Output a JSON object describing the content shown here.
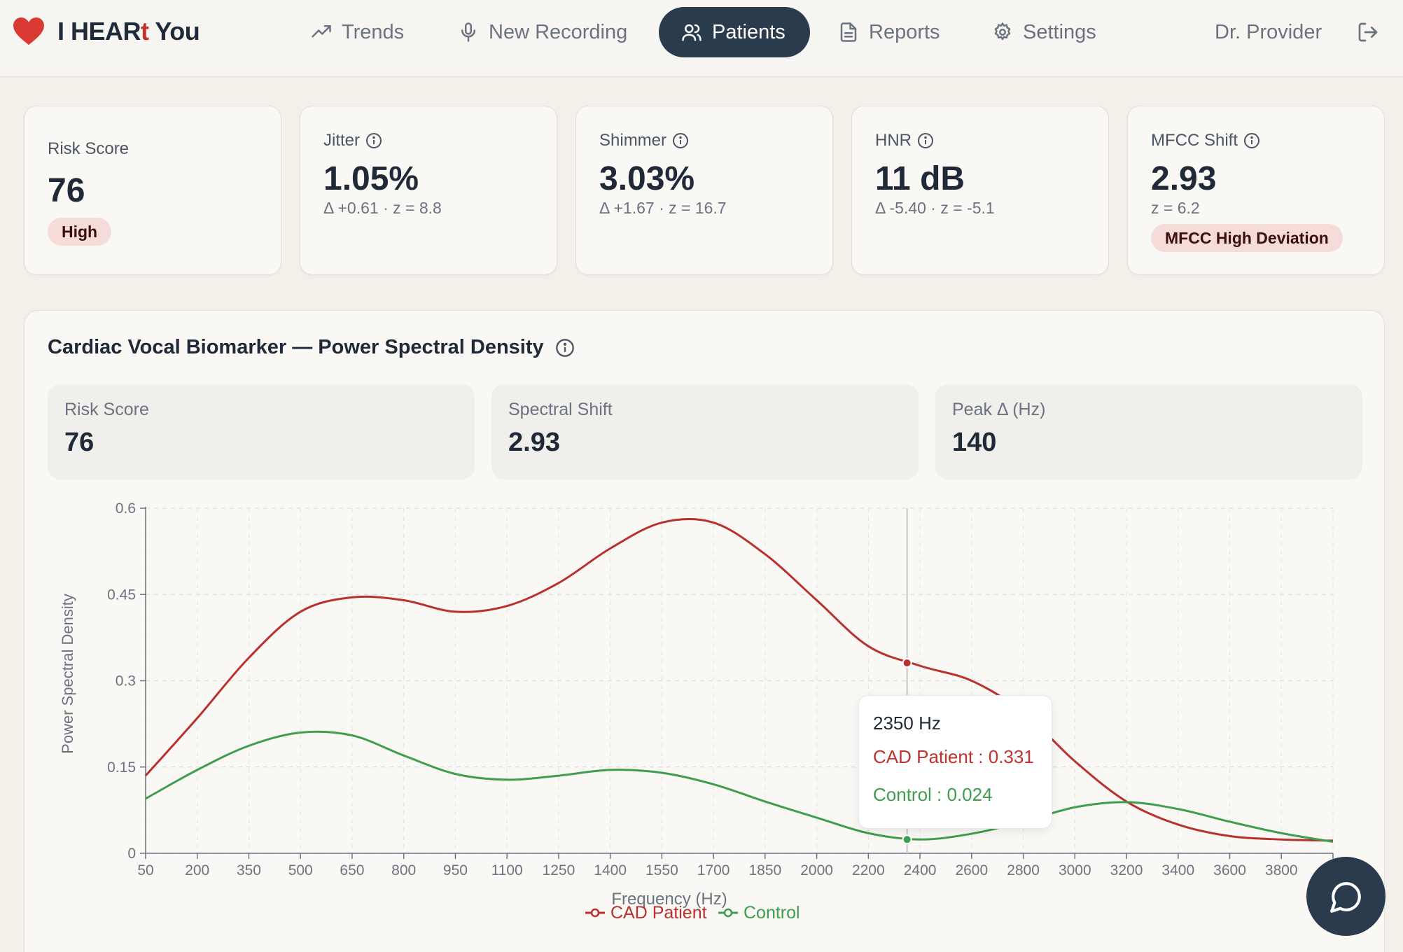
{
  "header": {
    "brand_prefix": "I HEAR",
    "brand_accent": "t",
    "brand_suffix": " You",
    "nav": [
      {
        "label": "Trends",
        "icon": "trending-up-icon"
      },
      {
        "label": "New Recording",
        "icon": "microphone-icon"
      },
      {
        "label": "Patients",
        "icon": "users-icon",
        "active": true
      },
      {
        "label": "Reports",
        "icon": "document-icon"
      },
      {
        "label": "Settings",
        "icon": "gear-icon"
      }
    ],
    "user": "Dr. Provider",
    "logout_icon": "logout-icon"
  },
  "metrics": {
    "risk": {
      "label": "Risk Score",
      "value": "76",
      "badge": "High"
    },
    "jitter": {
      "label": "Jitter",
      "value": "1.05%",
      "sub": "Δ +0.61 · z = 8.8"
    },
    "shimmer": {
      "label": "Shimmer",
      "value": "3.03%",
      "sub": "Δ +1.67 · z = 16.7"
    },
    "hnr": {
      "label": "HNR",
      "value": "11 dB",
      "sub": "Δ -5.40 · z = -5.1"
    },
    "mfcc": {
      "label": "MFCC Shift",
      "value": "2.93",
      "sub": "z = 6.2",
      "badge": "MFCC High Deviation"
    }
  },
  "panel": {
    "title": "Cardiac Vocal Biomarker — Power Spectral Density",
    "stats": [
      {
        "label": "Risk Score",
        "value": "76"
      },
      {
        "label": "Spectral Shift",
        "value": "2.93"
      },
      {
        "label": "Peak Δ (Hz)",
        "value": "140"
      }
    ]
  },
  "chart_data": {
    "type": "line",
    "xlabel": "Frequency (Hz)",
    "ylabel": "Power Spectral Density",
    "ylim": [
      0,
      0.6
    ],
    "yticks": [
      0,
      0.15,
      0.3,
      0.45,
      0.6
    ],
    "yticklabels": [
      "0",
      "0.15",
      "0.3",
      "0.45",
      "0.6"
    ],
    "x": [
      50,
      200,
      350,
      500,
      650,
      800,
      950,
      1100,
      1250,
      1400,
      1550,
      1700,
      1850,
      2000,
      2200,
      2400,
      2600,
      2800,
      3000,
      3200,
      3400,
      3600,
      3800,
      4000
    ],
    "xticklabels": [
      "50",
      "200",
      "350",
      "500",
      "650",
      "800",
      "950",
      "1100",
      "1250",
      "1400",
      "1550",
      "1700",
      "1850",
      "2000",
      "2200",
      "2400",
      "2600",
      "2800",
      "3000",
      "3200",
      "3400",
      "3600",
      "3800",
      ""
    ],
    "series": [
      {
        "name": "CAD Patient",
        "color": "#b8312e",
        "values": [
          0.135,
          0.235,
          0.34,
          0.42,
          0.445,
          0.44,
          0.42,
          0.43,
          0.47,
          0.53,
          0.575,
          0.575,
          0.52,
          0.44,
          0.36,
          0.326,
          0.3,
          0.245,
          0.16,
          0.09,
          0.05,
          0.03,
          0.024,
          0.022
        ]
      },
      {
        "name": "Control",
        "color": "#3f9d4e",
        "values": [
          0.095,
          0.145,
          0.187,
          0.21,
          0.205,
          0.17,
          0.138,
          0.128,
          0.135,
          0.145,
          0.14,
          0.12,
          0.09,
          0.062,
          0.035,
          0.024,
          0.034,
          0.055,
          0.08,
          0.089,
          0.077,
          0.055,
          0.035,
          0.02
        ]
      }
    ],
    "grid": true,
    "legend": "bottom-center",
    "hover": {
      "x_label": "2350 Hz",
      "x": 2350,
      "values": [
        0.331,
        0.024
      ],
      "lines": [
        "CAD Patient : 0.331",
        "Control : 0.024"
      ]
    }
  }
}
